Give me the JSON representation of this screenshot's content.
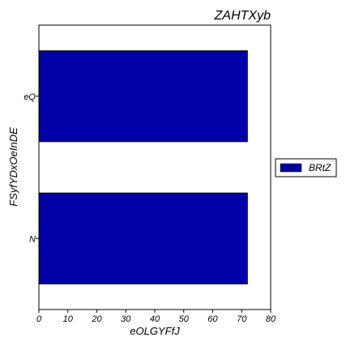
{
  "chart_data": {
    "type": "bar",
    "orientation": "horizontal",
    "title": "ZAHTXyb",
    "xlabel": "eOLGYFfJ",
    "ylabel": "FSyfYDxOeInDE",
    "categories": [
      "eQ",
      "N"
    ],
    "series": [
      {
        "name": "BRtZ",
        "values": [
          72,
          72
        ],
        "color": "#0000a8"
      }
    ],
    "xlim": [
      0,
      80
    ],
    "xticks": [
      0,
      10,
      20,
      30,
      40,
      50,
      60,
      70,
      80
    ],
    "grid": false,
    "legend_position": "right"
  }
}
